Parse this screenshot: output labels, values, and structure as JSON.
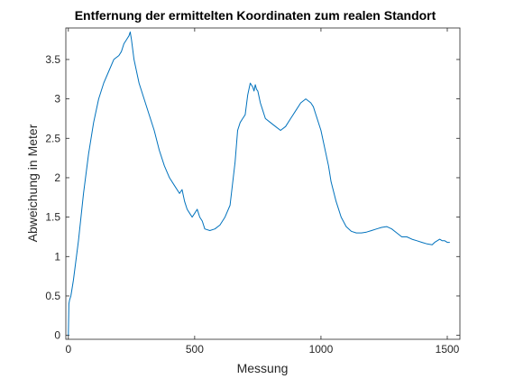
{
  "chart_data": {
    "type": "line",
    "title": "Entfernung der ermittelten Koordinaten zum realen Standort",
    "xlabel": "Messung",
    "ylabel": "Abweichung in Meter",
    "xlim": [
      -10,
      1550
    ],
    "ylim": [
      -0.05,
      3.9
    ],
    "xticks": [
      0,
      500,
      1000,
      1500
    ],
    "xtick_labels": [
      "0",
      "500",
      "1000",
      "1500"
    ],
    "yticks": [
      0,
      0.5,
      1,
      1.5,
      2,
      2.5,
      3,
      3.5
    ],
    "ytick_labels": [
      "0",
      "0.5",
      "1",
      "1.5",
      "2",
      "2.5",
      "3",
      "3.5"
    ],
    "grid": false,
    "line_color": "#0072bd",
    "series": [
      {
        "x": [
          0,
          2,
          5,
          10,
          20,
          40,
          60,
          80,
          100,
          120,
          140,
          160,
          180,
          200,
          210,
          220,
          230,
          240,
          245,
          250,
          260,
          280,
          300,
          320,
          340,
          360,
          380,
          400,
          420,
          440,
          450,
          460,
          470,
          480,
          490,
          500,
          510,
          515,
          520,
          530,
          540,
          560,
          580,
          600,
          620,
          640,
          660,
          670,
          680,
          690,
          700,
          710,
          720,
          730,
          735,
          740,
          745,
          750,
          760,
          770,
          780,
          800,
          820,
          840,
          860,
          880,
          900,
          920,
          940,
          960,
          970,
          980,
          1000,
          1020,
          1030,
          1040,
          1060,
          1080,
          1100,
          1120,
          1140,
          1160,
          1180,
          1200,
          1220,
          1240,
          1260,
          1280,
          1300,
          1320,
          1340,
          1360,
          1380,
          1400,
          1420,
          1440,
          1450,
          1460,
          1470,
          1480,
          1490,
          1500,
          1510
        ],
        "y": [
          0,
          0.4,
          0.45,
          0.5,
          0.7,
          1.2,
          1.8,
          2.3,
          2.7,
          3.0,
          3.2,
          3.35,
          3.5,
          3.55,
          3.6,
          3.7,
          3.75,
          3.8,
          3.85,
          3.75,
          3.5,
          3.2,
          3.0,
          2.8,
          2.6,
          2.35,
          2.15,
          2.0,
          1.9,
          1.8,
          1.85,
          1.7,
          1.6,
          1.55,
          1.5,
          1.55,
          1.6,
          1.55,
          1.5,
          1.45,
          1.35,
          1.33,
          1.35,
          1.4,
          1.5,
          1.65,
          2.2,
          2.6,
          2.7,
          2.75,
          2.8,
          3.05,
          3.2,
          3.15,
          3.1,
          3.18,
          3.12,
          3.1,
          2.95,
          2.85,
          2.75,
          2.7,
          2.65,
          2.6,
          2.65,
          2.75,
          2.85,
          2.95,
          3.0,
          2.95,
          2.9,
          2.8,
          2.6,
          2.3,
          2.15,
          1.95,
          1.7,
          1.5,
          1.38,
          1.32,
          1.3,
          1.3,
          1.31,
          1.33,
          1.35,
          1.37,
          1.38,
          1.35,
          1.3,
          1.25,
          1.25,
          1.22,
          1.2,
          1.18,
          1.16,
          1.15,
          1.18,
          1.2,
          1.22,
          1.2,
          1.2,
          1.18,
          1.18
        ]
      }
    ]
  }
}
